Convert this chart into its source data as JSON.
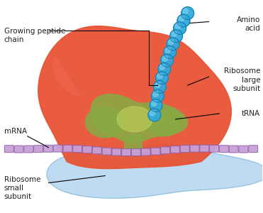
{
  "background_color": "#ffffff",
  "large_subunit_color": "#e85030",
  "large_subunit_highlight": "#f07060",
  "small_subunit_color": "#b8d8f0",
  "small_subunit_highlight": "#e8f4ff",
  "trna_color": "#88aa44",
  "trna_highlight": "#c8d860",
  "mrna_color": "#c8a0d8",
  "mrna_border": "#9060a8",
  "peptide_color": "#30aadc",
  "peptide_border": "#1878a8",
  "peptide_highlight": "#80d0f0",
  "labels": {
    "amino_acid": "Amino\nacid",
    "ribosome_large": "Ribosome\nlarge\nsubunit",
    "trna": "tRNA",
    "mrna": "mRNA",
    "ribosome_small": "Ribosome\nsmall\nsubunit",
    "growing_peptide": "Growing peptide\nchain"
  },
  "label_fontsize": 7.5,
  "label_color": "#222222"
}
